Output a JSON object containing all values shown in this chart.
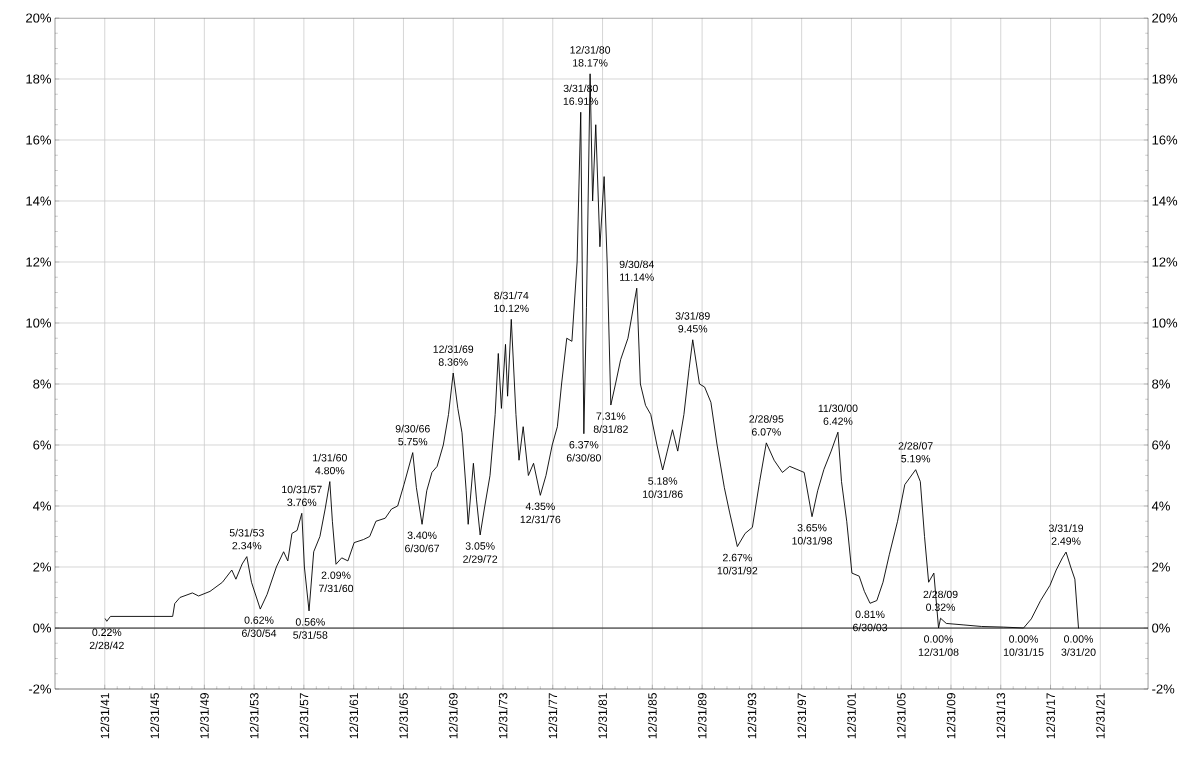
{
  "chart_data": {
    "type": "line",
    "color": "#000000",
    "grid": true,
    "marker": "none",
    "line_style": "solid",
    "x": [
      "1942-01",
      "1942-02-28",
      "1942-06",
      "1947-06",
      "1947-08",
      "1948-01",
      "1948-09",
      "1949-01",
      "1949-07",
      "1950-06",
      "1951-06",
      "1952-03",
      "1952-07",
      "1953-01",
      "1953-05-31",
      "1953-10",
      "1954-06-30",
      "1955-01",
      "1955-10",
      "1956-05",
      "1956-09",
      "1957-01",
      "1957-06",
      "1957-10-31",
      "1958-01",
      "1958-05-31",
      "1958-10",
      "1959-04",
      "1959-09",
      "1960-01-31",
      "1960-04",
      "1960-07-31",
      "1961-01",
      "1961-07",
      "1962-01",
      "1962-10",
      "1963-04",
      "1963-10",
      "1964-07",
      "1965-01",
      "1965-07",
      "1966-01",
      "1966-09-30",
      "1967-01",
      "1967-06-30",
      "1967-11",
      "1968-04",
      "1968-09",
      "1969-03",
      "1969-08",
      "1969-12-31",
      "1970-05",
      "1970-09",
      "1971-01",
      "1971-03",
      "1971-08",
      "1971-11",
      "1972-02-29",
      "1972-07",
      "1972-12",
      "1973-05",
      "1973-08",
      "1973-11",
      "1974-03",
      "1974-05",
      "1974-08-31",
      "1975-01",
      "1975-04",
      "1975-08",
      "1976-01",
      "1976-06",
      "1976-12-31",
      "1977-06",
      "1977-12",
      "1978-05",
      "1978-09",
      "1979-02",
      "1979-07",
      "1979-12",
      "1980-03-31",
      "1980-06-30",
      "1980-09",
      "1980-12-31",
      "1981-03",
      "1981-06",
      "1981-10",
      "1982-02",
      "1982-05",
      "1982-08-31",
      "1983-01",
      "1983-06",
      "1984-01",
      "1984-09-30",
      "1985-01",
      "1985-06",
      "1985-11",
      "1986-05",
      "1986-10-31",
      "1987-03",
      "1987-08",
      "1988-01",
      "1988-07",
      "1988-12",
      "1989-03-31",
      "1989-10",
      "1990-03",
      "1990-09",
      "1991-03",
      "1991-10",
      "1992-03",
      "1992-10-31",
      "1993-06",
      "1994-01",
      "1994-08",
      "1995-02-28",
      "1995-10",
      "1996-06",
      "1997-01",
      "1997-08",
      "1998-03",
      "1998-10-31",
      "1999-04",
      "1999-10",
      "2000-05",
      "2000-11-30",
      "2001-03",
      "2001-08",
      "2002-01",
      "2002-08",
      "2003-01",
      "2003-06-30",
      "2004-01",
      "2004-07",
      "2005-01",
      "2005-09",
      "2006-04",
      "2007-02-28",
      "2007-07",
      "2007-11",
      "2008-03",
      "2008-08",
      "2008-12-31",
      "2009-02-28",
      "2009-08",
      "2011-01",
      "2012-06",
      "2014-03",
      "2015-10-31",
      "2016-06",
      "2017-03",
      "2017-12",
      "2018-06",
      "2018-12",
      "2019-03-31",
      "2019-08",
      "2019-12",
      "2020-03-31"
    ],
    "values": [
      0.3,
      0.22,
      0.38,
      0.38,
      0.8,
      1.0,
      1.1,
      1.15,
      1.05,
      1.2,
      1.5,
      1.9,
      1.6,
      2.1,
      2.34,
      1.5,
      0.62,
      1.1,
      2.0,
      2.5,
      2.2,
      3.1,
      3.2,
      3.76,
      2.0,
      0.56,
      2.5,
      3.0,
      3.9,
      4.8,
      3.5,
      2.09,
      2.3,
      2.2,
      2.8,
      2.9,
      3.0,
      3.5,
      3.6,
      3.9,
      4.0,
      4.7,
      5.75,
      4.6,
      3.4,
      4.5,
      5.1,
      5.3,
      6.0,
      7.0,
      8.36,
      7.2,
      6.4,
      4.5,
      3.4,
      5.4,
      4.2,
      3.05,
      4.0,
      5.0,
      7.0,
      9.0,
      7.2,
      9.3,
      7.6,
      10.12,
      7.0,
      5.5,
      6.6,
      5.0,
      5.4,
      4.35,
      5.0,
      6.0,
      6.6,
      8.0,
      9.5,
      9.4,
      12.0,
      16.91,
      6.37,
      10.5,
      18.17,
      14.0,
      16.5,
      12.5,
      14.8,
      12.0,
      7.31,
      8.0,
      8.8,
      9.5,
      11.14,
      8.0,
      7.3,
      7.0,
      6.0,
      5.18,
      5.8,
      6.5,
      5.8,
      7.0,
      8.5,
      9.45,
      8.0,
      7.9,
      7.4,
      6.0,
      4.6,
      3.8,
      2.67,
      3.1,
      3.3,
      4.8,
      6.07,
      5.5,
      5.1,
      5.3,
      5.2,
      5.1,
      3.65,
      4.5,
      5.2,
      5.8,
      6.42,
      4.8,
      3.5,
      1.8,
      1.7,
      1.2,
      0.81,
      0.9,
      1.5,
      2.4,
      3.5,
      4.7,
      5.19,
      4.8,
      3.0,
      1.5,
      1.8,
      0.0,
      0.32,
      0.15,
      0.1,
      0.05,
      0.03,
      0.0,
      0.3,
      0.9,
      1.4,
      1.9,
      2.3,
      2.49,
      2.0,
      1.6,
      0.0
    ],
    "xlim": [
      "1937-12-31",
      "2025-11-01"
    ],
    "xticks": [
      {
        "value": "1941-12-31",
        "label": "12/31/41"
      },
      {
        "value": "1945-12-31",
        "label": "12/31/45"
      },
      {
        "value": "1949-12-31",
        "label": "12/31/49"
      },
      {
        "value": "1953-12-31",
        "label": "12/31/53"
      },
      {
        "value": "1957-12-31",
        "label": "12/31/57"
      },
      {
        "value": "1961-12-31",
        "label": "12/31/61"
      },
      {
        "value": "1965-12-31",
        "label": "12/31/65"
      },
      {
        "value": "1969-12-31",
        "label": "12/31/69"
      },
      {
        "value": "1973-12-31",
        "label": "12/31/73"
      },
      {
        "value": "1977-12-31",
        "label": "12/31/77"
      },
      {
        "value": "1981-12-31",
        "label": "12/31/81"
      },
      {
        "value": "1985-12-31",
        "label": "12/31/85"
      },
      {
        "value": "1989-12-31",
        "label": "12/31/89"
      },
      {
        "value": "1993-12-31",
        "label": "12/31/93"
      },
      {
        "value": "1997-12-31",
        "label": "12/31/97"
      },
      {
        "value": "2001-12-31",
        "label": "12/31/01"
      },
      {
        "value": "2005-12-31",
        "label": "12/31/05"
      },
      {
        "value": "2009-12-31",
        "label": "12/31/09"
      },
      {
        "value": "2013-12-31",
        "label": "12/31/13"
      },
      {
        "value": "2017-12-31",
        "label": "12/31/17"
      },
      {
        "value": "2021-12-31",
        "label": "12/31/21"
      }
    ],
    "ylim": [
      -2,
      20
    ],
    "yticks": [
      {
        "value": -2,
        "label": "-2%"
      },
      {
        "value": 0,
        "label": "0%"
      },
      {
        "value": 2,
        "label": "2%"
      },
      {
        "value": 4,
        "label": "4%"
      },
      {
        "value": 6,
        "label": "6%"
      },
      {
        "value": 8,
        "label": "8%"
      },
      {
        "value": 10,
        "label": "10%"
      },
      {
        "value": 12,
        "label": "12%"
      },
      {
        "value": 14,
        "label": "14%"
      },
      {
        "value": 16,
        "label": "16%"
      },
      {
        "value": 18,
        "label": "18%"
      },
      {
        "value": 20,
        "label": "20%"
      }
    ],
    "y2lim": [
      -2,
      20
    ],
    "y2ticks": [
      {
        "value": -2,
        "label": "-2%"
      },
      {
        "value": 0,
        "label": "0%"
      },
      {
        "value": 2,
        "label": "2%"
      },
      {
        "value": 4,
        "label": "4%"
      },
      {
        "value": 6,
        "label": "6%"
      },
      {
        "value": 8,
        "label": "8%"
      },
      {
        "value": 10,
        "label": "10%"
      },
      {
        "value": 12,
        "label": "12%"
      },
      {
        "value": 14,
        "label": "14%"
      },
      {
        "value": 16,
        "label": "16%"
      },
      {
        "value": 18,
        "label": "18%"
      },
      {
        "value": 20,
        "label": "20%"
      }
    ],
    "ref_lines": [
      {
        "axis": "y",
        "value": 0,
        "color": "#000000"
      }
    ],
    "annotations": [
      {
        "text": "0.22%",
        "x": "1942-02-28",
        "y": 0.22
      },
      {
        "text": "2/28/42",
        "x": "1942-02-28",
        "y": 0.22
      },
      {
        "text": "5/31/53",
        "x": "1953-05-31",
        "y": 2.34
      },
      {
        "text": "2.34%",
        "x": "1953-05-31",
        "y": 2.34
      },
      {
        "text": "0.62%",
        "x": "1954-06-30",
        "y": 0.62
      },
      {
        "text": "6/30/54",
        "x": "1954-06-30",
        "y": 0.62
      },
      {
        "text": "10/31/57",
        "x": "1957-10-31",
        "y": 3.76
      },
      {
        "text": "3.76%",
        "x": "1957-10-31",
        "y": 3.76
      },
      {
        "text": "0.56%",
        "x": "1958-05-31",
        "y": 0.56
      },
      {
        "text": "5/31/58",
        "x": "1958-05-31",
        "y": 0.56
      },
      {
        "text": "1/31/60",
        "x": "1960-01-31",
        "y": 4.8
      },
      {
        "text": "4.80%",
        "x": "1960-01-31",
        "y": 4.8
      },
      {
        "text": "2.09%",
        "x": "1960-07-31",
        "y": 2.09
      },
      {
        "text": "7/31/60",
        "x": "1960-07-31",
        "y": 2.09
      },
      {
        "text": "9/30/66",
        "x": "1966-09-30",
        "y": 5.75
      },
      {
        "text": "5.75%",
        "x": "1966-09-30",
        "y": 5.75
      },
      {
        "text": "3.40%",
        "x": "1967-06-30",
        "y": 3.4
      },
      {
        "text": "6/30/67",
        "x": "1967-06-30",
        "y": 3.4
      },
      {
        "text": "12/31/69",
        "x": "1969-12-31",
        "y": 8.36
      },
      {
        "text": "8.36%",
        "x": "1969-12-31",
        "y": 8.36
      },
      {
        "text": "3.05%",
        "x": "1972-02-29",
        "y": 3.05
      },
      {
        "text": "2/29/72",
        "x": "1972-02-29",
        "y": 3.05
      },
      {
        "text": "8/31/74",
        "x": "1974-08-31",
        "y": 10.12
      },
      {
        "text": "10.12%",
        "x": "1974-08-31",
        "y": 10.12
      },
      {
        "text": "4.35%",
        "x": "1976-12-31",
        "y": 4.35
      },
      {
        "text": "12/31/76",
        "x": "1976-12-31",
        "y": 4.35
      },
      {
        "text": "3/31/80",
        "x": "1980-03-31",
        "y": 16.91
      },
      {
        "text": "16.91%",
        "x": "1980-03-31",
        "y": 16.91
      },
      {
        "text": "6.37%",
        "x": "1980-06-30",
        "y": 6.37
      },
      {
        "text": "6/30/80",
        "x": "1980-06-30",
        "y": 6.37
      },
      {
        "text": "12/31/80",
        "x": "1980-12-31",
        "y": 18.17
      },
      {
        "text": "18.17%",
        "x": "1980-12-31",
        "y": 18.17
      },
      {
        "text": "7.31%",
        "x": "1982-08-31",
        "y": 7.31
      },
      {
        "text": "8/31/82",
        "x": "1982-08-31",
        "y": 7.31
      },
      {
        "text": "9/30/84",
        "x": "1984-09-30",
        "y": 11.14
      },
      {
        "text": "11.14%",
        "x": "1984-09-30",
        "y": 11.14
      },
      {
        "text": "5.18%",
        "x": "1986-10-31",
        "y": 5.18
      },
      {
        "text": "10/31/86",
        "x": "1986-10-31",
        "y": 5.18
      },
      {
        "text": "3/31/89",
        "x": "1989-03-31",
        "y": 9.45
      },
      {
        "text": "9.45%",
        "x": "1989-03-31",
        "y": 9.45
      },
      {
        "text": "2.67%",
        "x": "1992-10-31",
        "y": 2.67
      },
      {
        "text": "10/31/92",
        "x": "1992-10-31",
        "y": 2.67
      },
      {
        "text": "2/28/95",
        "x": "1995-02-28",
        "y": 6.07
      },
      {
        "text": "6.07%",
        "x": "1995-02-28",
        "y": 6.07
      },
      {
        "text": "3.65%",
        "x": "1998-10-31",
        "y": 3.65
      },
      {
        "text": "10/31/98",
        "x": "1998-10-31",
        "y": 3.65
      },
      {
        "text": "11/30/00",
        "x": "2000-11-30",
        "y": 6.42
      },
      {
        "text": "6.42%",
        "x": "2000-11-30",
        "y": 6.42
      },
      {
        "text": "0.81%",
        "x": "2003-06-30",
        "y": 0.81
      },
      {
        "text": "6/30/03",
        "x": "2003-06-30",
        "y": 0.81
      },
      {
        "text": "2/28/07",
        "x": "2007-02-28",
        "y": 5.19
      },
      {
        "text": "5.19%",
        "x": "2007-02-28",
        "y": 5.19
      },
      {
        "text": "0.00%",
        "x": "2008-12-31",
        "y": 0.0
      },
      {
        "text": "12/31/08",
        "x": "2008-12-31",
        "y": 0.0
      },
      {
        "text": "2/28/09",
        "x": "2009-02-28",
        "y": 0.32
      },
      {
        "text": "0.32%",
        "x": "2009-02-28",
        "y": 0.32
      },
      {
        "text": "0.00%",
        "x": "2015-10-31",
        "y": 0.0
      },
      {
        "text": "10/31/15",
        "x": "2015-10-31",
        "y": 0.0
      },
      {
        "text": "3/31/19",
        "x": "2019-03-31",
        "y": 2.49
      },
      {
        "text": "2.49%",
        "x": "2019-03-31",
        "y": 2.49
      },
      {
        "text": "0.00%",
        "x": "2020-03-31",
        "y": 0.0
      },
      {
        "text": "3/31/20",
        "x": "2020-03-31",
        "y": 0.0
      }
    ]
  }
}
